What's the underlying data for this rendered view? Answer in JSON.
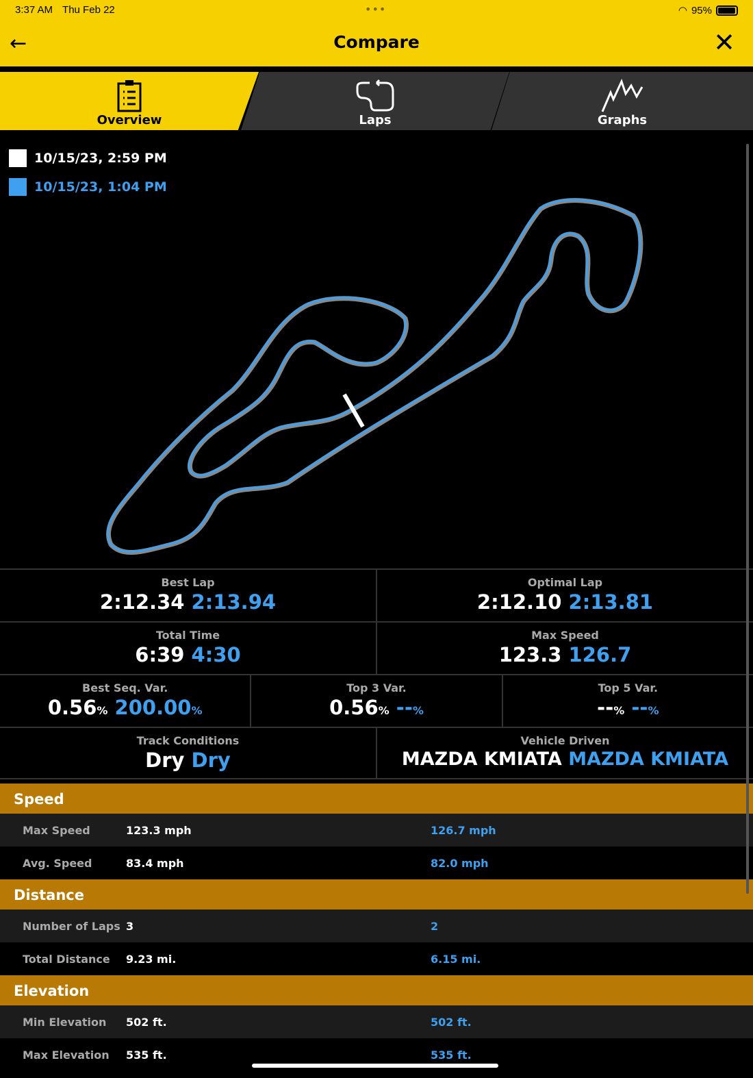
{
  "status": {
    "time": "3:37 AM",
    "date": "Thu Feb 22",
    "battery": "95%"
  },
  "header": {
    "title": "Compare"
  },
  "tabs": [
    {
      "label": "Overview",
      "icon": "clipboard-icon"
    },
    {
      "label": "Laps",
      "icon": "track-lap-icon"
    },
    {
      "label": "Graphs",
      "icon": "graph-icon"
    }
  ],
  "sessions": [
    {
      "label": "10/15/23, 2:59 PM",
      "color": "#ffffff"
    },
    {
      "label": "10/15/23, 1:04 PM",
      "color": "#3fa0ef"
    }
  ],
  "stats": {
    "best_lap": {
      "label": "Best Lap",
      "a": "2:12.34",
      "b": "2:13.94"
    },
    "optimal_lap": {
      "label": "Optimal Lap",
      "a": "2:12.10",
      "b": "2:13.81"
    },
    "total_time": {
      "label": "Total Time",
      "a": "6:39",
      "b": "4:30"
    },
    "max_speed": {
      "label": "Max Speed",
      "a": "123.3",
      "b": "126.7"
    },
    "best_seq": {
      "label": "Best Seq. Var.",
      "a": "0.56",
      "b": "200.00",
      "unit": "%"
    },
    "top3": {
      "label": "Top 3 Var.",
      "a": "0.56",
      "b": "--",
      "unit": "%"
    },
    "top5": {
      "label": "Top 5 Var.",
      "a": "--",
      "b": "--",
      "unit": "%"
    },
    "track": {
      "label": "Track Conditions",
      "a": "Dry",
      "b": "Dry"
    },
    "vehicle": {
      "label": "Vehicle Driven",
      "a": "MAZDA KMIATA",
      "b": "MAZDA KMIATA"
    }
  },
  "sections": [
    {
      "title": "Speed",
      "rows": [
        {
          "k": "Max Speed",
          "a": "123.3 mph",
          "b": "126.7 mph"
        },
        {
          "k": "Avg. Speed",
          "a": "83.4 mph",
          "b": "82.0 mph"
        }
      ]
    },
    {
      "title": "Distance",
      "rows": [
        {
          "k": "Number of Laps",
          "a": "3",
          "b": "2"
        },
        {
          "k": "Total Distance",
          "a": "9.23 mi.",
          "b": "6.15 mi."
        }
      ]
    },
    {
      "title": "Elevation",
      "rows": [
        {
          "k": "Min Elevation",
          "a": "502 ft.",
          "b": "502 ft."
        },
        {
          "k": "Max Elevation",
          "a": "535 ft.",
          "b": "535 ft."
        }
      ]
    }
  ]
}
